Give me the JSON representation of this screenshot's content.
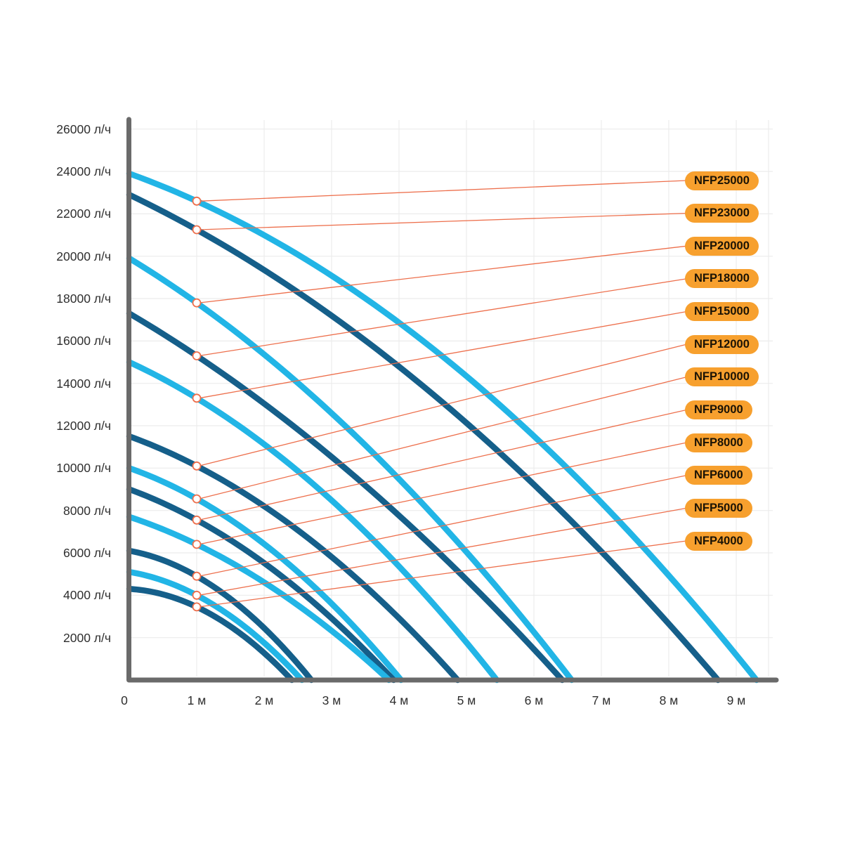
{
  "chart_data": {
    "type": "line",
    "description": "Pump performance curves: flow rate (л/ч) versus head (м) for NFP series pumps",
    "grid": true,
    "legend_position": "right-badges",
    "marker_at_head_m": 1,
    "x_axis": {
      "unit": "м",
      "tick_values": [
        0,
        1,
        2,
        3,
        4,
        5,
        6,
        7,
        8,
        9
      ],
      "tick_labels": [
        "0",
        "1 м",
        "2 м",
        "3 м",
        "4 м",
        "5 м",
        "6 м",
        "7 м",
        "8 м",
        "9 м"
      ],
      "range_m": [
        0,
        9.6
      ]
    },
    "y_axis": {
      "unit": "л/ч",
      "tick_values": [
        2000,
        4000,
        6000,
        8000,
        10000,
        12000,
        14000,
        16000,
        18000,
        20000,
        22000,
        24000,
        26000
      ],
      "tick_labels": [
        "2000 л/ч",
        "4000 л/ч",
        "6000 л/ч",
        "8000 л/ч",
        "10000 л/ч",
        "12000 л/ч",
        "14000 л/ч",
        "16000 л/ч",
        "18000 л/ч",
        "20000 л/ч",
        "22000 л/ч",
        "24000 л/ч",
        "26000 л/ч"
      ],
      "range": [
        0,
        26500
      ]
    },
    "series": [
      {
        "name": "NFP25000",
        "color": "light",
        "max_flow_lph": 23900,
        "flow_at_1m_lph": 22600,
        "max_head_m": 9.3
      },
      {
        "name": "NFP23000",
        "color": "dark",
        "max_flow_lph": 22900,
        "flow_at_1m_lph": 21250,
        "max_head_m": 8.73
      },
      {
        "name": "NFP20000",
        "color": "light",
        "max_flow_lph": 19900,
        "flow_at_1m_lph": 17800,
        "max_head_m": 6.56
      },
      {
        "name": "NFP18000",
        "color": "dark",
        "max_flow_lph": 17300,
        "flow_at_1m_lph": 15300,
        "max_head_m": 6.42
      },
      {
        "name": "NFP15000",
        "color": "light",
        "max_flow_lph": 15000,
        "flow_at_1m_lph": 13300,
        "max_head_m": 5.45
      },
      {
        "name": "NFP12000",
        "color": "dark",
        "max_flow_lph": 11500,
        "flow_at_1m_lph": 10100,
        "max_head_m": 4.87
      },
      {
        "name": "NFP10000",
        "color": "light",
        "max_flow_lph": 10000,
        "flow_at_1m_lph": 8550,
        "max_head_m": 4.03
      },
      {
        "name": "NFP9000",
        "color": "dark",
        "max_flow_lph": 9000,
        "flow_at_1m_lph": 7550,
        "max_head_m": 3.92
      },
      {
        "name": "NFP8000",
        "color": "light",
        "max_flow_lph": 7700,
        "flow_at_1m_lph": 6400,
        "max_head_m": 3.85
      },
      {
        "name": "NFP6000",
        "color": "dark",
        "max_flow_lph": 6100,
        "flow_at_1m_lph": 4900,
        "max_head_m": 2.7
      },
      {
        "name": "NFP5000",
        "color": "light",
        "max_flow_lph": 5100,
        "flow_at_1m_lph": 4000,
        "max_head_m": 2.56
      },
      {
        "name": "NFP4000",
        "color": "dark",
        "max_flow_lph": 4300,
        "flow_at_1m_lph": 3450,
        "max_head_m": 2.41
      }
    ]
  },
  "colors": {
    "curve_light": "#22b5e6",
    "curve_dark": "#155f8a",
    "axis": "#6a6a6a",
    "grid": "#ececec",
    "badge_bg": "#f7a02e",
    "badge_text": "#1b1305",
    "leader": "#ed6f4c",
    "tick_text": "#2e2e2e"
  }
}
